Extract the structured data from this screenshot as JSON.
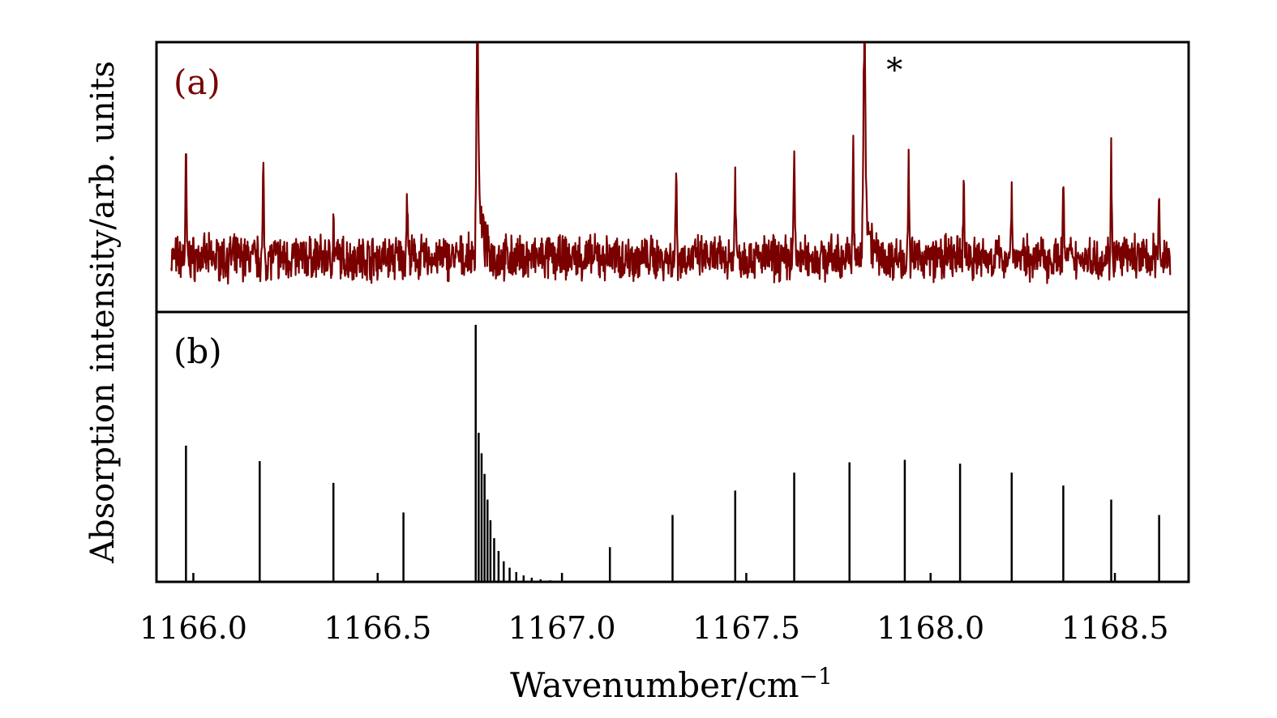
{
  "chart_data": {
    "type": "line",
    "xlabel": "Wavenumber/cm",
    "xlabel_sup": "−1",
    "ylabel": "Absorption intensity/arb. units",
    "xlim": [
      1165.9,
      1168.7
    ],
    "x_ticks": [
      1166.0,
      1166.5,
      1167.0,
      1167.5,
      1168.0,
      1168.5
    ],
    "x_tick_labels": [
      "1166.0",
      "1166.5",
      "1167.0",
      "1167.5",
      "1168.0",
      "1168.5"
    ],
    "grid": false,
    "colors": {
      "experimental": "#7a0000",
      "simulated": "#000000",
      "frame": "#000000"
    },
    "panels": [
      {
        "id": "a",
        "label": "(a)",
        "kind": "experimental-trace",
        "annotation": {
          "text": "*",
          "x": 1167.88
        },
        "x_range": [
          1165.94,
          1168.65
        ],
        "ylim": [
          -0.25,
          1.0
        ],
        "baseline": 0.0,
        "peaks": [
          {
            "x": 1165.98,
            "y": 0.45
          },
          {
            "x": 1166.19,
            "y": 0.4
          },
          {
            "x": 1166.38,
            "y": 0.15
          },
          {
            "x": 1166.58,
            "y": 0.3
          },
          {
            "x": 1166.77,
            "y": 1.0
          },
          {
            "x": 1167.31,
            "y": 0.4
          },
          {
            "x": 1167.47,
            "y": 0.42
          },
          {
            "x": 1167.63,
            "y": 0.52
          },
          {
            "x": 1167.79,
            "y": 0.5
          },
          {
            "x": 1167.82,
            "y": 1.0
          },
          {
            "x": 1167.94,
            "y": 0.42
          },
          {
            "x": 1168.09,
            "y": 0.36
          },
          {
            "x": 1168.22,
            "y": 0.36
          },
          {
            "x": 1168.36,
            "y": 0.34
          },
          {
            "x": 1168.49,
            "y": 0.47
          },
          {
            "x": 1168.62,
            "y": 0.28
          }
        ]
      },
      {
        "id": "b",
        "label": "(b)",
        "kind": "stick-spectrum",
        "ylim": [
          0,
          1.05
        ],
        "sticks": [
          {
            "x": 1165.98,
            "y": 0.53
          },
          {
            "x": 1166.18,
            "y": 0.47
          },
          {
            "x": 1166.38,
            "y": 0.385
          },
          {
            "x": 1166.57,
            "y": 0.27
          },
          {
            "x": 1166.766,
            "y": 1.0
          },
          {
            "x": 1166.774,
            "y": 0.58
          },
          {
            "x": 1166.782,
            "y": 0.5
          },
          {
            "x": 1166.79,
            "y": 0.42
          },
          {
            "x": 1166.798,
            "y": 0.32
          },
          {
            "x": 1166.806,
            "y": 0.24
          },
          {
            "x": 1166.816,
            "y": 0.17
          },
          {
            "x": 1166.828,
            "y": 0.12
          },
          {
            "x": 1166.842,
            "y": 0.08
          },
          {
            "x": 1166.858,
            "y": 0.055
          },
          {
            "x": 1166.876,
            "y": 0.038
          },
          {
            "x": 1166.896,
            "y": 0.025
          },
          {
            "x": 1166.918,
            "y": 0.016
          },
          {
            "x": 1166.942,
            "y": 0.01
          },
          {
            "x": 1166.968,
            "y": 0.006
          },
          {
            "x": 1167.13,
            "y": 0.135
          },
          {
            "x": 1167.3,
            "y": 0.26
          },
          {
            "x": 1167.47,
            "y": 0.355
          },
          {
            "x": 1167.63,
            "y": 0.425
          },
          {
            "x": 1167.78,
            "y": 0.465
          },
          {
            "x": 1167.93,
            "y": 0.475
          },
          {
            "x": 1168.08,
            "y": 0.46
          },
          {
            "x": 1168.22,
            "y": 0.425
          },
          {
            "x": 1168.36,
            "y": 0.375
          },
          {
            "x": 1168.49,
            "y": 0.32
          },
          {
            "x": 1168.62,
            "y": 0.26
          }
        ]
      }
    ]
  }
}
